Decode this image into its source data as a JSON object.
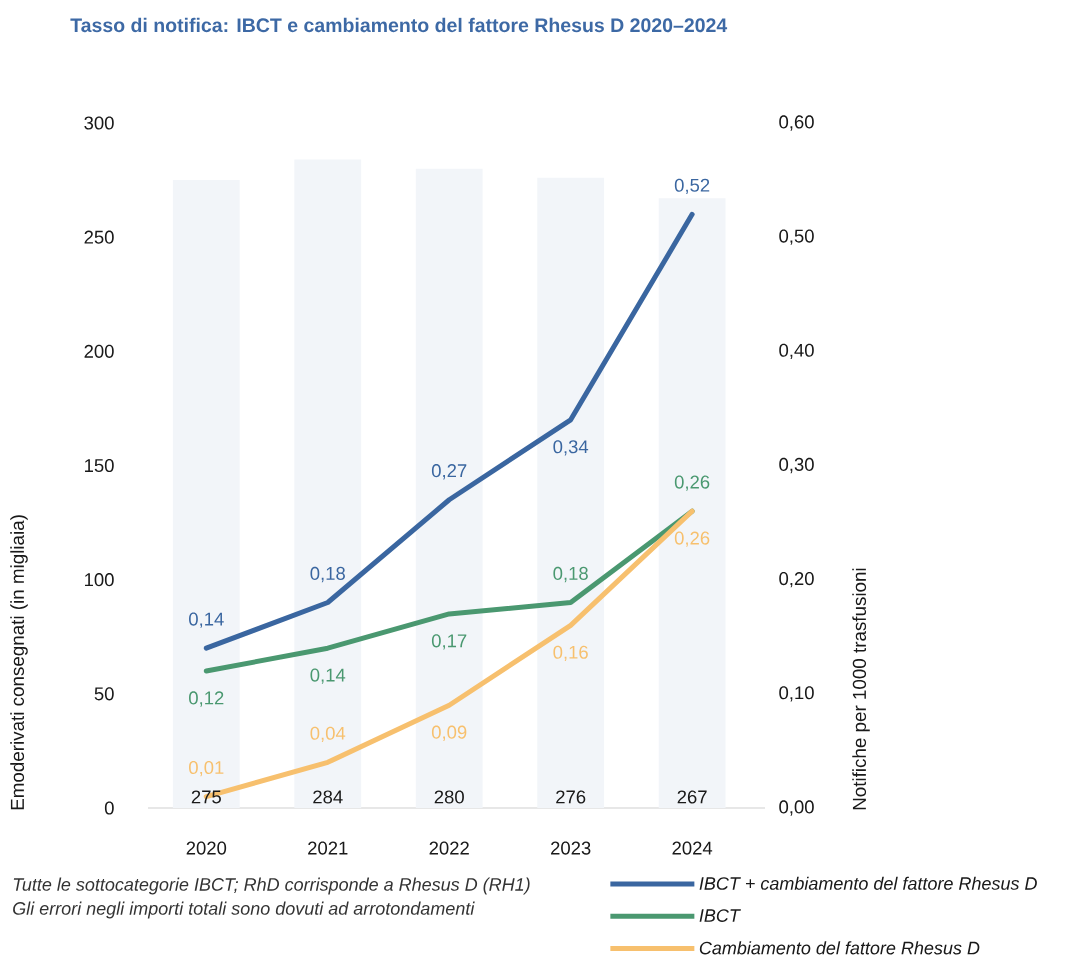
{
  "chart_data": {
    "type": "bar",
    "title": "Tasso di notifica: IBCT e cambiamento del fattore Rhesus D 2020–2024",
    "ylabel": "Emoderivati consegnati (in migliaia)",
    "y2label": "Notifiche per 1000 trasfusioni",
    "categories": [
      "2020",
      "2021",
      "2022",
      "2023",
      "2024"
    ],
    "series": [
      {
        "color": "#f2f5f9",
        "values": [
          275,
          284,
          280,
          276,
          267
        ],
        "value_labels": [
          "275",
          "284",
          "280",
          "276",
          "267"
        ]
      },
      {
        "type": "line",
        "axis": "y2",
        "name": "IBCT + cambiamento del fattore Rhesus D",
        "color": "#3a66a0",
        "values": [
          0.14,
          0.18,
          0.27,
          0.34,
          0.52
        ],
        "value_labels": [
          "0,14",
          "0,18",
          "0,27",
          "0,34",
          "0,52"
        ]
      },
      {
        "type": "line",
        "axis": "y2",
        "name": "IBCT",
        "color": "#4a9870",
        "values": [
          0.12,
          0.14,
          0.17,
          0.18,
          0.26
        ],
        "value_labels": [
          "0,12",
          "0,14",
          "0,17",
          "0,18",
          "0,26"
        ]
      },
      {
        "type": "line",
        "axis": "y2",
        "name": "Cambiamento del fattore Rhesus D",
        "color": "#f7c06e",
        "values": [
          0.01,
          0.04,
          0.09,
          0.16,
          0.26
        ],
        "value_labels": [
          "0,01",
          "0,04",
          "0,09",
          "0,16",
          "0,26"
        ]
      }
    ],
    "ylim": [
      0,
      300
    ],
    "yticks": [
      0,
      50,
      100,
      150,
      200,
      250,
      300
    ],
    "y2lim": [
      0,
      0.6
    ],
    "y2ticks": [
      {
        "value": 0,
        "label": "0,00"
      },
      {
        "value": 0.1,
        "label": "0,10"
      },
      {
        "value": 0.2,
        "label": "0,20"
      },
      {
        "value": 0.3,
        "label": "0,30"
      },
      {
        "value": 0.4,
        "label": "0,40"
      },
      {
        "value": 0.5,
        "label": "0,50"
      },
      {
        "value": 0.6,
        "label": "0,60"
      }
    ],
    "legend": "bottom right",
    "marker": "none",
    "line_style": "solid",
    "annotations": [
      "Tutte le sottocategorie IBCT; RhD corrisponde a Rhesus D (RH1)",
      "Gli errori negli importi totali sono dovuti ad arrotondamenti"
    ]
  }
}
